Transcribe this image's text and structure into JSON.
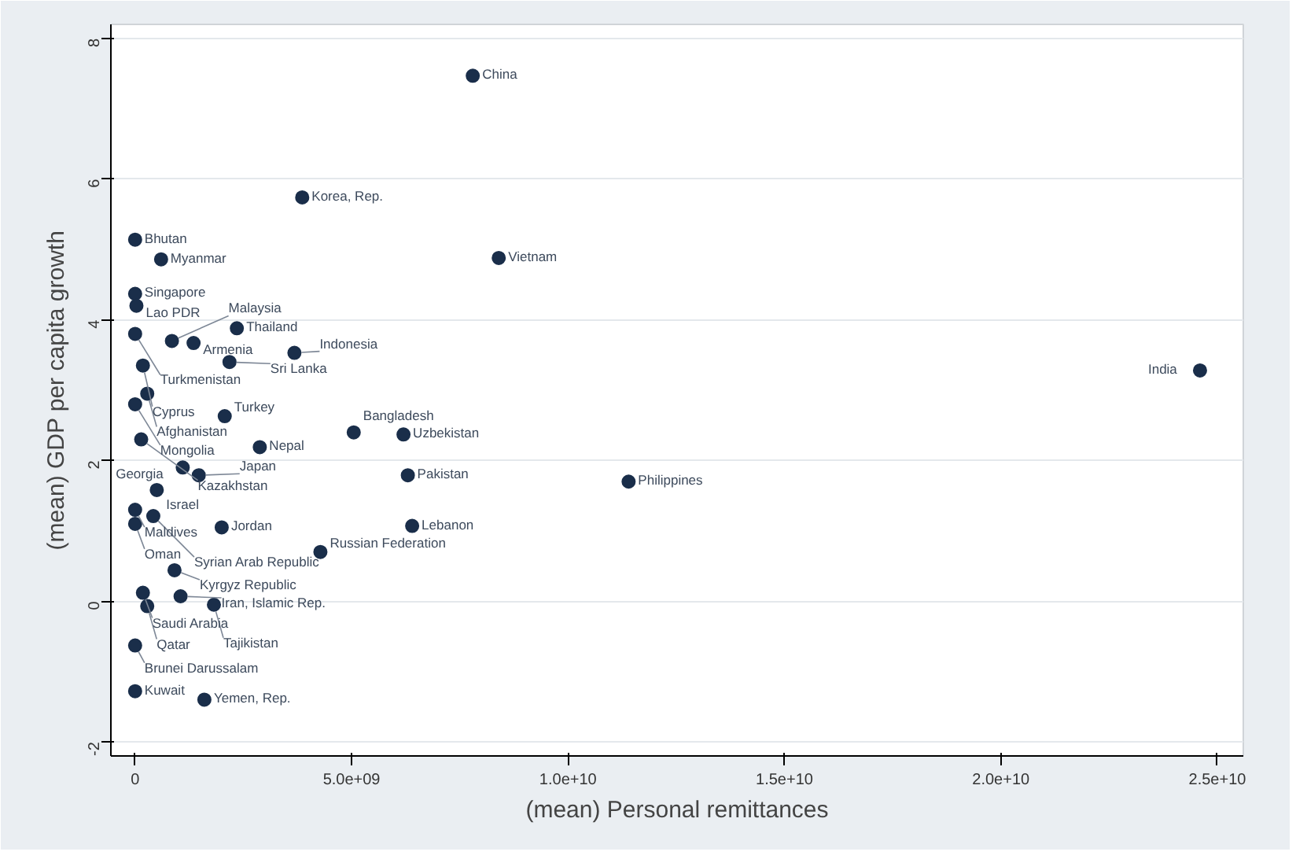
{
  "chart_data": {
    "type": "scatter",
    "xlabel": "(mean) Personal remittances",
    "ylabel": "(mean) GDP per capita growth",
    "xlim": [
      -560000000.0,
      25600000000.0
    ],
    "ylim": [
      -2.2,
      8.2
    ],
    "xticks": [
      0,
      {
        "value": 5000000000.0,
        "label": "5.0e+09"
      },
      {
        "value": 10000000000.0,
        "label": "1.0e+10"
      },
      {
        "value": 15000000000.0,
        "label": "1.5e+10"
      },
      {
        "value": 20000000000.0,
        "label": "2.0e+10"
      },
      {
        "value": 25000000000.0,
        "label": "2.5e+10"
      }
    ],
    "yticks": [
      -2,
      0,
      2,
      4,
      6,
      8
    ],
    "grid": "y",
    "marker": "circle",
    "series": [
      {
        "color": "#1a2e4a",
        "x": [
          7800000000.0,
          3860000000.0,
          0,
          600000000.0,
          8400000000.0,
          0,
          30000000.0,
          2350000000.0,
          0,
          850000000.0,
          1350000000.0,
          2180000000.0,
          3680000000.0,
          180000000.0,
          280000000.0,
          0,
          2070000000.0,
          140000000.0,
          2880000000.0,
          5050000000.0,
          6200000000.0,
          1100000000.0,
          1470000000.0,
          500000000.0,
          6300000000.0,
          11400000000.0,
          24600000000.0,
          0,
          0,
          420000000.0,
          2000000000.0,
          6400000000.0,
          4280000000.0,
          910000000.0,
          180000000.0,
          1050000000.0,
          280000000.0,
          1820000000.0,
          0,
          0,
          1600000000.0
        ],
        "values": [
          7.47,
          5.74,
          5.14,
          4.86,
          4.88,
          4.37,
          4.2,
          3.88,
          3.8,
          3.7,
          3.67,
          3.4,
          3.53,
          3.35,
          2.95,
          2.8,
          2.63,
          2.3,
          2.19,
          2.4,
          2.37,
          1.9,
          1.79,
          1.58,
          1.79,
          1.7,
          3.28,
          1.3,
          1.1,
          1.21,
          1.05,
          1.07,
          0.7,
          0.44,
          0.12,
          0.07,
          -0.07,
          -0.05,
          -0.63,
          -1.28,
          -1.4
        ]
      }
    ],
    "annotations": [
      {
        "text": "China",
        "x": 7800000000.0,
        "y": 7.47
      },
      {
        "text": "Korea, Rep.",
        "x": 3860000000.0,
        "y": 5.74
      },
      {
        "text": "Bhutan",
        "x": 0,
        "y": 5.14
      },
      {
        "text": "Myanmar",
        "x": 600000000.0,
        "y": 4.86
      },
      {
        "text": "Vietnam",
        "x": 8400000000.0,
        "y": 4.88
      },
      {
        "text": "Singapore",
        "x": 0,
        "y": 4.37
      },
      {
        "text": "Lao PDR",
        "x": 30000000.0,
        "y": 4.2
      },
      {
        "text": "Thailand",
        "x": 2350000000.0,
        "y": 3.88
      },
      {
        "text": "Turkmenistan",
        "x": 0,
        "y": 3.8
      },
      {
        "text": "Malaysia",
        "x": 850000000.0,
        "y": 3.7
      },
      {
        "text": "Armenia",
        "x": 1350000000.0,
        "y": 3.67
      },
      {
        "text": "Sri Lanka",
        "x": 2180000000.0,
        "y": 3.4
      },
      {
        "text": "Indonesia",
        "x": 3680000000.0,
        "y": 3.53
      },
      {
        "text": "Cyprus",
        "x": 180000000.0,
        "y": 3.35
      },
      {
        "text": "Afghanistan",
        "x": 280000000.0,
        "y": 2.95
      },
      {
        "text": "Mongolia",
        "x": 0,
        "y": 2.8
      },
      {
        "text": "Turkey",
        "x": 2070000000.0,
        "y": 2.63
      },
      {
        "text": "Kazakhstan",
        "x": 140000000.0,
        "y": 2.3
      },
      {
        "text": "Nepal",
        "x": 2880000000.0,
        "y": 2.19
      },
      {
        "text": "Bangladesh",
        "x": 5050000000.0,
        "y": 2.4
      },
      {
        "text": "Uzbekistan",
        "x": 6200000000.0,
        "y": 2.37
      },
      {
        "text": "Georgia",
        "x": 1100000000.0,
        "y": 1.9
      },
      {
        "text": "Japan",
        "x": 1470000000.0,
        "y": 1.79
      },
      {
        "text": "Israel",
        "x": 500000000.0,
        "y": 1.58
      },
      {
        "text": "Pakistan",
        "x": 6300000000.0,
        "y": 1.79
      },
      {
        "text": "Philippines",
        "x": 11400000000.0,
        "y": 1.7
      },
      {
        "text": "India",
        "x": 24600000000.0,
        "y": 3.28
      },
      {
        "text": "Maldives",
        "x": 0,
        "y": 1.3
      },
      {
        "text": "Oman",
        "x": 0,
        "y": 1.1
      },
      {
        "text": "Syrian Arab Republic",
        "x": 420000000.0,
        "y": 1.21
      },
      {
        "text": "Jordan",
        "x": 2000000000.0,
        "y": 1.05
      },
      {
        "text": "Lebanon",
        "x": 6400000000.0,
        "y": 1.07
      },
      {
        "text": "Russian Federation",
        "x": 4280000000.0,
        "y": 0.7
      },
      {
        "text": "Kyrgyz Republic",
        "x": 910000000.0,
        "y": 0.44
      },
      {
        "text": "Saudi Arabia",
        "x": 180000000.0,
        "y": 0.12
      },
      {
        "text": "Iran, Islamic Rep.",
        "x": 1050000000.0,
        "y": 0.07
      },
      {
        "text": "Qatar",
        "x": 280000000.0,
        "y": -0.07
      },
      {
        "text": "Tajikistan",
        "x": 1820000000.0,
        "y": -0.05
      },
      {
        "text": "Brunei Darussalam",
        "x": 0,
        "y": -0.63
      },
      {
        "text": "Kuwait",
        "x": 0,
        "y": -1.28
      },
      {
        "text": "Yemen, Rep.",
        "x": 1600000000.0,
        "y": -1.4
      }
    ]
  }
}
